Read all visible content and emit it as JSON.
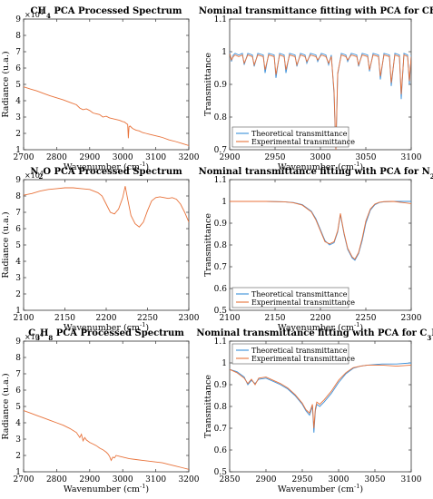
{
  "chart_data": [
    {
      "type": "line",
      "title": "CH4 PCA Processed Spectrum",
      "title_parts": {
        "pre": "CH",
        "sub": "4",
        "post": " PCA Processed Spectrum"
      },
      "xlabel": "Wavenumber (cm-1)",
      "xlabel_parts": {
        "pre": "Wavenumber (cm",
        "sup": "-1",
        "post": ")"
      },
      "ylabel": "Radiance (u.a.)",
      "xlim": [
        2700,
        3200
      ],
      "ylim": [
        1,
        9
      ],
      "xticks": [
        "2700",
        "2800",
        "2900",
        "3000",
        "3100",
        "3200"
      ],
      "yticks": [
        "1",
        "2",
        "3",
        "4",
        "5",
        "6",
        "7",
        "8",
        "9"
      ],
      "exponent": {
        "base": "×10",
        "power": "4"
      },
      "color": "#e8723a",
      "series": [
        {
          "x": [
            2700,
            2720,
            2740,
            2760,
            2780,
            2800,
            2820,
            2840,
            2860,
            2870,
            2880,
            2890,
            2900,
            2910,
            2920,
            2930,
            2940,
            2950,
            2960,
            2970,
            2980,
            2990,
            3000,
            3005,
            3010,
            3015,
            3017,
            3019,
            3022,
            3030,
            3040,
            3050,
            3060,
            3070,
            3080,
            3090,
            3100,
            3110,
            3120,
            3140,
            3160,
            3180,
            3200
          ],
          "y": [
            4.85,
            4.72,
            4.6,
            4.45,
            4.3,
            4.18,
            4.05,
            3.9,
            3.75,
            3.55,
            3.45,
            3.5,
            3.4,
            3.25,
            3.2,
            3.15,
            3.0,
            3.05,
            2.95,
            2.9,
            2.85,
            2.8,
            2.72,
            2.7,
            2.62,
            2.55,
            1.7,
            2.4,
            2.45,
            2.3,
            2.2,
            2.15,
            2.05,
            2.0,
            1.95,
            1.9,
            1.85,
            1.8,
            1.75,
            1.6,
            1.5,
            1.38,
            1.25
          ]
        }
      ]
    },
    {
      "type": "line",
      "title": "Nominal transmittance fitting with PCA for CH4",
      "title_parts": {
        "pre": "Nominal transmittance fitting with PCA for CH",
        "sub": "4",
        "post": ""
      },
      "xlabel": "Wavenumber (cm-1)",
      "xlabel_parts": {
        "pre": "Wavenumber (cm",
        "sup": "-1",
        "post": ")"
      },
      "ylabel": "Transmittance",
      "xlim": [
        2900,
        3100
      ],
      "ylim": [
        0.7,
        1.1
      ],
      "xticks": [
        "2900",
        "2950",
        "3000",
        "3050",
        "3100"
      ],
      "yticks": [
        "0.7",
        "0.8",
        "0.9",
        "1",
        "1.1"
      ],
      "legend": "bottom-left",
      "series": [
        {
          "name": "Theoretical transmittance",
          "color": "#3a8fd9",
          "x": [
            2900,
            2902,
            2904,
            2906,
            2910,
            2914,
            2916,
            2920,
            2925,
            2927,
            2931,
            2937,
            2939,
            2943,
            2949,
            2951,
            2955,
            2960,
            2962,
            2966,
            2972,
            2974,
            2978,
            2983,
            2985,
            2989,
            2995,
            2997,
            3001,
            3006,
            3009,
            3012,
            3015,
            3017,
            3019,
            3023,
            3028,
            3030,
            3034,
            3040,
            3042,
            3046,
            3052,
            3054,
            3058,
            3064,
            3066,
            3070,
            3076,
            3078,
            3082,
            3087,
            3089,
            3092,
            3096,
            3098,
            3100
          ],
          "y": [
            1.0,
            0.97,
            0.99,
            0.995,
            0.99,
            0.995,
            0.96,
            0.995,
            0.99,
            0.955,
            0.995,
            0.99,
            0.935,
            0.995,
            0.99,
            0.92,
            0.995,
            0.99,
            0.935,
            0.995,
            0.99,
            0.955,
            0.995,
            0.99,
            0.965,
            0.995,
            0.99,
            0.97,
            0.995,
            0.99,
            0.96,
            0.99,
            0.87,
            0.69,
            0.93,
            0.995,
            0.99,
            0.97,
            0.995,
            0.99,
            0.955,
            0.995,
            0.99,
            0.94,
            0.995,
            0.99,
            0.915,
            0.995,
            0.99,
            0.895,
            0.995,
            0.99,
            0.855,
            0.995,
            0.99,
            0.9,
            0.99
          ]
        },
        {
          "name": "Experimental transmittance",
          "color": "#e8723a",
          "x": [
            2900,
            2902,
            2904,
            2906,
            2910,
            2914,
            2916,
            2920,
            2925,
            2927,
            2931,
            2937,
            2939,
            2943,
            2949,
            2951,
            2955,
            2960,
            2962,
            2966,
            2972,
            2974,
            2978,
            2983,
            2985,
            2989,
            2995,
            2997,
            3001,
            3006,
            3009,
            3012,
            3015,
            3017,
            3019,
            3023,
            3028,
            3030,
            3034,
            3040,
            3042,
            3046,
            3052,
            3054,
            3058,
            3064,
            3066,
            3070,
            3076,
            3078,
            3082,
            3087,
            3089,
            3092,
            3096,
            3098,
            3100
          ],
          "y": [
            0.995,
            0.975,
            0.985,
            0.99,
            0.985,
            0.99,
            0.965,
            0.99,
            0.985,
            0.96,
            0.99,
            0.985,
            0.945,
            0.99,
            0.985,
            0.93,
            0.99,
            0.985,
            0.945,
            0.99,
            0.985,
            0.96,
            0.99,
            0.985,
            0.97,
            0.99,
            0.985,
            0.975,
            0.99,
            0.985,
            0.965,
            0.985,
            0.88,
            0.7,
            0.935,
            0.99,
            0.985,
            0.975,
            0.99,
            0.985,
            0.96,
            0.99,
            0.985,
            0.945,
            0.99,
            0.985,
            0.925,
            0.99,
            0.985,
            0.905,
            0.99,
            0.985,
            0.87,
            0.99,
            0.985,
            0.91,
            0.985
          ]
        }
      ]
    },
    {
      "type": "line",
      "title": "N2O PCA Processed Spectrum",
      "title_parts": {
        "pre": "N",
        "sub": "2",
        "post": "O PCA Processed Spectrum"
      },
      "xlabel": "Wavenumber (cm-1)",
      "xlabel_parts": {
        "pre": "Wavenumber (cm",
        "sup": "-1",
        "post": ")"
      },
      "ylabel": "Radiance (u.a.)",
      "xlim": [
        2100,
        2300
      ],
      "ylim": [
        1,
        9
      ],
      "xticks": [
        "2100",
        "2150",
        "2200",
        "2250",
        "2300"
      ],
      "yticks": [
        "1",
        "2",
        "3",
        "4",
        "5",
        "6",
        "7",
        "8",
        "9"
      ],
      "exponent": {
        "base": "×10",
        "power": "4"
      },
      "color": "#e8723a",
      "series": [
        {
          "x": [
            2100,
            2110,
            2120,
            2130,
            2140,
            2150,
            2160,
            2170,
            2180,
            2190,
            2195,
            2200,
            2205,
            2210,
            2215,
            2220,
            2223,
            2226,
            2230,
            2235,
            2240,
            2245,
            2250,
            2255,
            2260,
            2265,
            2270,
            2275,
            2280,
            2285,
            2290,
            2295,
            2300
          ],
          "y": [
            8.05,
            8.15,
            8.3,
            8.4,
            8.45,
            8.5,
            8.5,
            8.45,
            8.4,
            8.2,
            8.0,
            7.5,
            7.0,
            6.9,
            7.2,
            7.9,
            8.6,
            7.8,
            6.8,
            6.3,
            6.1,
            6.4,
            7.1,
            7.7,
            7.9,
            7.95,
            7.9,
            7.85,
            7.9,
            7.8,
            7.5,
            7.0,
            6.4
          ]
        }
      ]
    },
    {
      "type": "line",
      "title": "Nominal transmittance fitting with PCA for N2O",
      "title_parts": {
        "pre": "Nominal transmittance fitting with PCA for N",
        "sub": "2",
        "post": "O"
      },
      "xlabel": "Wavenumber (cm-1)",
      "xlabel_parts": {
        "pre": "Wavenumber (cm",
        "sup": "-1",
        "post": ")"
      },
      "ylabel": "Transmittance",
      "xlim": [
        2100,
        2300
      ],
      "ylim": [
        0.5,
        1.1
      ],
      "xticks": [
        "2100",
        "2150",
        "2200",
        "2250",
        "2300"
      ],
      "yticks": [
        "0.5",
        "0.6",
        "0.7",
        "0.8",
        "0.9",
        "1",
        "1.1"
      ],
      "legend": "bottom-left",
      "series": [
        {
          "name": "Theoretical transmittance",
          "color": "#3a8fd9",
          "x": [
            2100,
            2120,
            2140,
            2160,
            2170,
            2180,
            2190,
            2195,
            2200,
            2205,
            2210,
            2215,
            2219,
            2222,
            2226,
            2230,
            2235,
            2238,
            2242,
            2246,
            2250,
            2255,
            2260,
            2265,
            2270,
            2280,
            2290,
            2300
          ],
          "y": [
            1.0,
            1.0,
            1.0,
            0.998,
            0.995,
            0.985,
            0.955,
            0.92,
            0.87,
            0.82,
            0.8,
            0.81,
            0.86,
            0.94,
            0.85,
            0.78,
            0.74,
            0.73,
            0.76,
            0.82,
            0.9,
            0.96,
            0.985,
            0.995,
            0.998,
            1.0,
            1.0,
            1.0
          ]
        },
        {
          "name": "Experimental transmittance",
          "color": "#e8723a",
          "x": [
            2100,
            2120,
            2140,
            2160,
            2170,
            2180,
            2190,
            2195,
            2200,
            2205,
            2210,
            2215,
            2219,
            2222,
            2226,
            2230,
            2235,
            2238,
            2242,
            2246,
            2250,
            2255,
            2260,
            2265,
            2270,
            2280,
            2290,
            2300
          ],
          "y": [
            1.0,
            1.0,
            1.0,
            0.998,
            0.994,
            0.983,
            0.952,
            0.915,
            0.865,
            0.815,
            0.805,
            0.815,
            0.865,
            0.945,
            0.855,
            0.785,
            0.745,
            0.735,
            0.765,
            0.83,
            0.91,
            0.965,
            0.988,
            0.996,
            0.999,
            1.0,
            0.995,
            0.99
          ]
        }
      ]
    },
    {
      "type": "line",
      "title": "C3H8 PCA Processed Spectrum",
      "title_parts": {
        "pre": "C",
        "sub": "3",
        "mid": "H",
        "sub2": "8",
        "post": " PCA Processed Spectrum"
      },
      "xlabel": "Wavenumber (cm-1)",
      "xlabel_parts": {
        "pre": "Wavenumber (cm",
        "sup": "-1",
        "post": ")"
      },
      "ylabel": "Radiance (u.a.)",
      "xlim": [
        2700,
        3200
      ],
      "ylim": [
        1,
        9
      ],
      "xticks": [
        "2700",
        "2800",
        "2900",
        "3000",
        "3100",
        "3200"
      ],
      "yticks": [
        "1",
        "2",
        "3",
        "4",
        "5",
        "6",
        "7",
        "8",
        "9"
      ],
      "exponent": {
        "base": "×10",
        "power": "4"
      },
      "color": "#e8723a",
      "series": [
        {
          "x": [
            2700,
            2720,
            2740,
            2760,
            2780,
            2800,
            2820,
            2840,
            2860,
            2870,
            2875,
            2880,
            2885,
            2890,
            2900,
            2910,
            2920,
            2930,
            2940,
            2950,
            2955,
            2960,
            2965,
            2970,
            2975,
            2980,
            2990,
            3000,
            3010,
            3020,
            3040,
            3060,
            3080,
            3100,
            3120,
            3140,
            3160,
            3180,
            3200
          ],
          "y": [
            4.75,
            4.6,
            4.45,
            4.3,
            4.15,
            4.0,
            3.85,
            3.65,
            3.4,
            3.1,
            3.3,
            2.9,
            3.1,
            2.95,
            2.8,
            2.7,
            2.6,
            2.45,
            2.35,
            2.2,
            2.1,
            1.95,
            1.7,
            1.9,
            1.85,
            2.0,
            1.95,
            1.9,
            1.85,
            1.8,
            1.75,
            1.7,
            1.65,
            1.6,
            1.55,
            1.45,
            1.35,
            1.25,
            1.15
          ]
        }
      ]
    },
    {
      "type": "line",
      "title": "Nominal transmittance fitting with PCA for C3H8",
      "title_parts": {
        "pre": "Nominal transmittance fitting with PCA for C",
        "sub": "3",
        "mid": "H",
        "sub2": "8",
        "post": ""
      },
      "xlabel": "Wavenumber (cm-1)",
      "xlabel_parts": {
        "pre": "Wavenumber (cm",
        "sup": "-1",
        "post": ")"
      },
      "ylabel": "Transmittance",
      "xlim": [
        2850,
        3100
      ],
      "ylim": [
        0.5,
        1.1
      ],
      "xticks": [
        "2850",
        "2900",
        "2950",
        "3000",
        "3050",
        "3100"
      ],
      "yticks": [
        "0.5",
        "0.6",
        "0.7",
        "0.8",
        "0.9",
        "1",
        "1.1"
      ],
      "legend": "top-left",
      "series": [
        {
          "name": "Theoretical transmittance",
          "color": "#3a8fd9",
          "x": [
            2850,
            2860,
            2870,
            2875,
            2880,
            2885,
            2890,
            2900,
            2910,
            2920,
            2930,
            2940,
            2950,
            2955,
            2960,
            2964,
            2966,
            2968,
            2970,
            2974,
            2980,
            2990,
            3000,
            3010,
            3020,
            3030,
            3040,
            3060,
            3080,
            3100
          ],
          "y": [
            0.97,
            0.96,
            0.935,
            0.9,
            0.92,
            0.905,
            0.925,
            0.93,
            0.915,
            0.9,
            0.88,
            0.85,
            0.81,
            0.78,
            0.76,
            0.8,
            0.68,
            0.78,
            0.81,
            0.8,
            0.82,
            0.86,
            0.91,
            0.95,
            0.975,
            0.985,
            0.99,
            0.995,
            0.995,
            1.0
          ]
        },
        {
          "name": "Experimental transmittance",
          "color": "#e8723a",
          "x": [
            2850,
            2860,
            2870,
            2875,
            2880,
            2885,
            2890,
            2900,
            2910,
            2920,
            2930,
            2940,
            2950,
            2955,
            2960,
            2964,
            2966,
            2968,
            2970,
            2974,
            2980,
            2990,
            3000,
            3010,
            3020,
            3030,
            3040,
            3060,
            3080,
            3100
          ],
          "y": [
            0.97,
            0.955,
            0.93,
            0.905,
            0.925,
            0.9,
            0.93,
            0.935,
            0.92,
            0.905,
            0.885,
            0.855,
            0.815,
            0.785,
            0.77,
            0.81,
            0.7,
            0.79,
            0.82,
            0.81,
            0.83,
            0.87,
            0.92,
            0.955,
            0.978,
            0.985,
            0.99,
            0.99,
            0.985,
            0.99
          ]
        }
      ]
    }
  ]
}
